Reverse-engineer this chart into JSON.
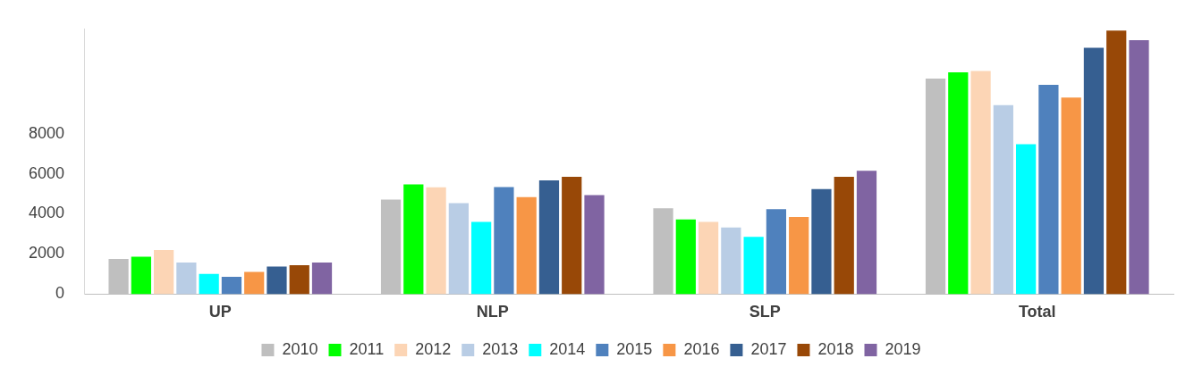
{
  "chart_data": {
    "type": "bar",
    "categories": [
      "UP",
      "NLP",
      "SLP",
      "Total"
    ],
    "series": [
      {
        "name": "2010",
        "color": "#bfbfbf",
        "values": [
          1750,
          4710,
          4280,
          10740
        ]
      },
      {
        "name": "2011",
        "color": "#00ff00",
        "values": [
          1870,
          5470,
          3720,
          11060
        ]
      },
      {
        "name": "2012",
        "color": "#fcd5b5",
        "values": [
          2200,
          5320,
          3600,
          11120
        ]
      },
      {
        "name": "2013",
        "color": "#b9cde5",
        "values": [
          1570,
          4530,
          3320,
          9420
        ]
      },
      {
        "name": "2014",
        "color": "#00ffff",
        "values": [
          1010,
          3600,
          2860,
          7470
        ]
      },
      {
        "name": "2015",
        "color": "#4f81bd",
        "values": [
          860,
          5340,
          4230,
          10430
        ]
      },
      {
        "name": "2016",
        "color": "#f79646",
        "values": [
          1110,
          4840,
          3850,
          9800
        ]
      },
      {
        "name": "2017",
        "color": "#365f91",
        "values": [
          1370,
          5670,
          5240,
          12280
        ]
      },
      {
        "name": "2018",
        "color": "#984807",
        "values": [
          1440,
          5850,
          5850,
          13140
        ]
      },
      {
        "name": "2019",
        "color": "#8064a2",
        "values": [
          1570,
          4940,
          6150,
          12660
        ]
      }
    ],
    "ylim": [
      0,
      13200
    ],
    "yticks": [
      0,
      2000,
      4000,
      6000,
      8000
    ],
    "grid": false,
    "legend": "bottom"
  }
}
